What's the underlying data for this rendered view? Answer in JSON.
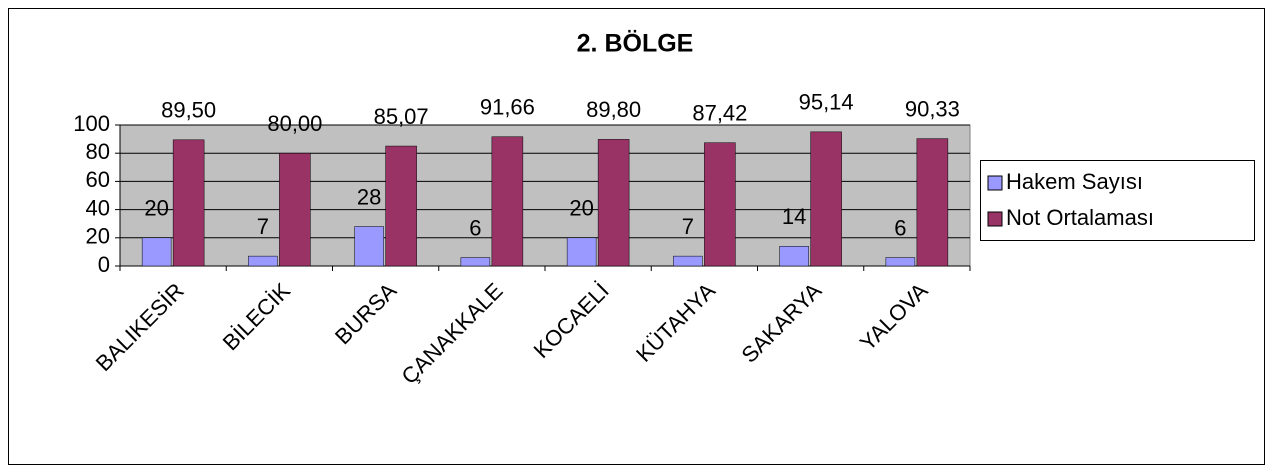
{
  "chart_data": {
    "type": "bar",
    "title": "2. BÖLGE",
    "categories": [
      "BALIKESİR",
      "BİLECİK",
      "BURSA",
      "ÇANAKKALE",
      "KOCAELİ",
      "KÜTAHYA",
      "SAKARYA",
      "YALOVA"
    ],
    "series": [
      {
        "name": "Hakem Sayısı",
        "color": "#9999ff",
        "values": [
          20,
          7,
          28,
          6,
          20,
          7,
          14,
          6
        ]
      },
      {
        "name": "Not Ortalaması",
        "color": "#993366",
        "values": [
          89.5,
          80,
          85.07,
          91.66,
          89.8,
          87.42,
          95.14,
          90.33
        ],
        "value_labels": [
          "89,50",
          "80,00",
          "85,07",
          "91,66",
          "89,80",
          "87,42",
          "95,14",
          "90,33"
        ]
      }
    ],
    "ylim": [
      0,
      100
    ],
    "yticks": [
      0,
      20,
      40,
      60,
      80,
      100
    ],
    "grid": true,
    "legend": "right"
  }
}
